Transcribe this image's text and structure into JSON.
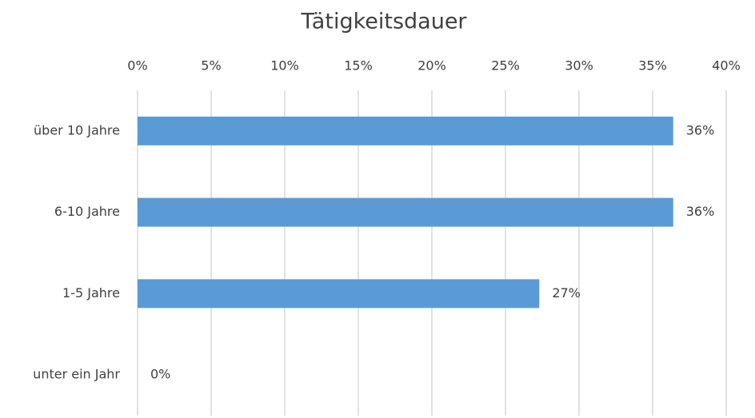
{
  "chart_data": {
    "type": "bar",
    "orientation": "horizontal",
    "title": "Tätigkeitsdauer",
    "categories": [
      "über 10 Jahre",
      "6-10 Jahre",
      "1-5 Jahre",
      "unter ein Jahr"
    ],
    "values": [
      36.4,
      36.4,
      27.3,
      0
    ],
    "value_labels": [
      "36%",
      "36%",
      "27%",
      "0%"
    ],
    "color": "#5b9bd5",
    "xlim": [
      0,
      40
    ],
    "xticks": [
      {
        "value": 0,
        "label": "0%"
      },
      {
        "value": 5,
        "label": "5%"
      },
      {
        "value": 10,
        "label": "10%"
      },
      {
        "value": 15,
        "label": "15%"
      },
      {
        "value": 20,
        "label": "20%"
      },
      {
        "value": 25,
        "label": "25%"
      },
      {
        "value": 30,
        "label": "30%"
      },
      {
        "value": 35,
        "label": "35%"
      },
      {
        "value": 40,
        "label": "40%"
      }
    ],
    "grid": true
  }
}
